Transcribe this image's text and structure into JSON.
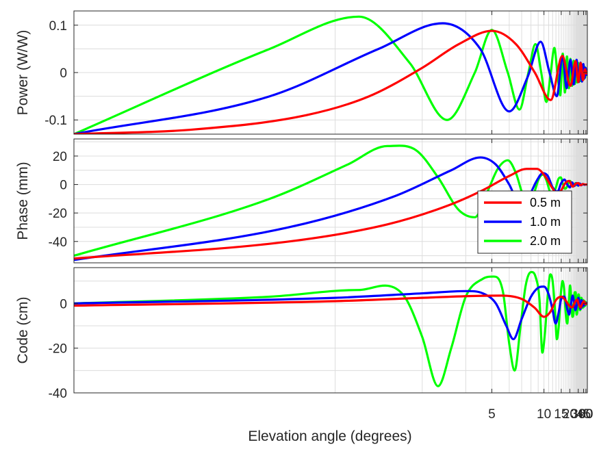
{
  "chart_data": {
    "type": "line",
    "xlabel": "Elevation angle (degrees)",
    "x_scale": "secant (ticks in degrees)",
    "xlim": [
      1,
      90
    ],
    "x_ticks": [
      5,
      10,
      15,
      20,
      30,
      45,
      60,
      90
    ],
    "grid": true,
    "legend": {
      "placement": "inside right of middle panel",
      "entries": [
        "0.5 m",
        "1.0 m",
        "2.0 m"
      ]
    },
    "series_colors": {
      "0.5 m": "#ff0000",
      "1.0 m": "#0000ff",
      "2.0 m": "#00ff00"
    },
    "panels": [
      {
        "ylabel": "Power (W/W)",
        "ylim": [
          -0.13,
          0.13
        ],
        "y_ticks": [
          -0.1,
          0,
          0.1
        ],
        "y_tick_labels": [
          "-0.1",
          "0",
          "0.1"
        ],
        "series": [
          {
            "name": "0.5 m",
            "x": [
              1.0,
              1.3,
              1.8,
              2.3,
              3.0,
              3.8,
              5.0,
              6.5,
              8.5,
              11.5,
              15.5,
              20.5,
              25.8,
              30.0,
              35.3,
              42.5,
              52.0,
              65.0,
              90.0
            ],
            "y": [
              -0.13,
              -0.12,
              -0.09,
              -0.05,
              0.01,
              0.06,
              0.088,
              0.06,
              0.0,
              -0.058,
              0.035,
              -0.028,
              0.024,
              -0.02,
              0.02,
              -0.016,
              0.007,
              -0.002,
              0.002
            ]
          },
          {
            "name": "1.0 m",
            "x": [
              1.0,
              1.6,
              2.4,
              3.4,
              4.5,
              6.0,
              7.6,
              9.4,
              11.2,
              13.3,
              15.6,
              17.8,
              20.5,
              23.6,
              27.3,
              31.0,
              35.0,
              39.0,
              44.0,
              50.0,
              57.0,
              65.0,
              75.0,
              90.0
            ],
            "y": [
              -0.13,
              -0.05,
              0.05,
              0.104,
              0.05,
              -0.082,
              -0.01,
              0.065,
              0.0,
              -0.05,
              0.035,
              -0.033,
              0.027,
              -0.025,
              0.027,
              -0.02,
              0.021,
              -0.019,
              0.018,
              -0.012,
              0.01,
              -0.005,
              0.003,
              0.001
            ]
          },
          {
            "name": "2.0 m",
            "x": [
              1.0,
              1.6,
              2.2,
              2.8,
              3.5,
              4.3,
              5.0,
              5.9,
              6.8,
              7.7,
              8.6,
              9.5,
              10.5,
              11.5,
              12.5,
              13.5,
              14.6,
              15.7,
              16.8,
              18.0,
              19.3,
              20.5,
              22.0,
              23.5,
              25.0,
              26.6,
              28.3,
              30.0,
              32.0,
              34.0,
              36.0,
              38.5,
              41.0,
              43.5,
              46.5,
              50.0,
              54.0,
              58.0,
              63.0,
              70.0,
              80.0,
              90.0
            ],
            "y": [
              -0.13,
              0.05,
              0.118,
              0.02,
              -0.1,
              0.0,
              0.09,
              0.0,
              -0.078,
              0.0,
              0.06,
              0.0,
              -0.062,
              0.0,
              0.052,
              -0.002,
              -0.048,
              0.04,
              -0.042,
              0.034,
              -0.033,
              0.029,
              -0.028,
              0.025,
              -0.024,
              0.022,
              -0.021,
              0.02,
              -0.019,
              0.018,
              -0.018,
              0.017,
              -0.016,
              0.015,
              -0.014,
              0.012,
              -0.01,
              0.008,
              -0.005,
              0.003,
              -0.001,
              0.0
            ]
          }
        ]
      },
      {
        "ylabel": "Phase (mm)",
        "ylim": [
          -55,
          32
        ],
        "y_ticks": [
          -40,
          -20,
          0,
          20
        ],
        "y_tick_labels": [
          "-40",
          "-20",
          "0",
          "20"
        ],
        "series": [
          {
            "name": "0.5 m",
            "x": [
              1.0,
              1.7,
              2.5,
              3.5,
              4.6,
              6.0,
              7.5,
              8.8,
              10.2,
              11.8,
              13.2,
              15.0,
              17.0,
              19.5,
              22.5,
              26.0,
              30.0,
              35.0,
              42.0,
              55.0,
              70.0,
              90.0
            ],
            "y": [
              -52,
              -40,
              -28,
              -15,
              -4,
              6,
              11,
              11,
              6,
              -2,
              -6,
              -4,
              1,
              2.5,
              -1.5,
              0.5,
              1,
              -0.5,
              0.3,
              0,
              0,
              0
            ]
          },
          {
            "name": "1.0 m",
            "x": [
              1.0,
              1.7,
              2.6,
              3.6,
              4.5,
              5.2,
              6.0,
              6.8,
              7.7,
              8.7,
              9.8,
              10.8,
              12.0,
              13.5,
              15.0,
              16.5,
              18.2,
              20.0,
              22.0,
              24.5,
              27.0,
              30.0,
              33.0,
              37.0,
              42.0,
              50.0,
              60.0,
              90.0
            ],
            "y": [
              -53,
              -30,
              -8,
              10,
              19,
              14,
              0,
              -13,
              -9,
              2,
              8,
              6,
              -2,
              -5,
              1,
              3.5,
              0,
              -2,
              1.5,
              -1,
              1,
              -0.8,
              0.7,
              -0.5,
              0.4,
              -0.2,
              0,
              0
            ]
          },
          {
            "name": "2.0 m",
            "x": [
              1.0,
              1.6,
              2.1,
              2.5,
              2.9,
              3.3,
              3.8,
              4.3,
              4.8,
              5.3,
              5.9,
              6.5,
              7.1,
              7.7,
              8.4,
              9.1,
              9.8,
              10.5,
              11.3,
              12.1,
              13.0,
              13.9,
              14.8,
              15.8,
              16.8,
              17.8,
              19.0,
              20.2,
              21.5,
              23.0,
              24.5,
              26.0,
              28.0,
              30.0,
              32.0,
              35.0,
              38.0,
              42.0,
              48.0,
              60.0,
              90.0
            ],
            "y": [
              -50,
              -10,
              14,
              27,
              24,
              5,
              -18,
              -23,
              -5,
              11,
              17,
              8,
              -7,
              -14,
              -6,
              4,
              7,
              3,
              -5,
              -7,
              -2,
              4,
              5,
              0,
              -3,
              -2,
              1,
              2.5,
              0,
              -1.5,
              0,
              1,
              -0.5,
              0.5,
              -0.3,
              0.3,
              -0.2,
              0.1,
              0,
              0,
              0
            ]
          }
        ]
      },
      {
        "ylabel": "Code (cm)",
        "ylim": [
          -40,
          16
        ],
        "y_ticks": [
          -40,
          -20,
          0
        ],
        "y_tick_labels": [
          "-40",
          "-20",
          "0"
        ],
        "series": [
          {
            "name": "0.5 m",
            "x": [
              1.0,
              2.0,
              3.0,
              4.2,
              5.5,
              7.0,
              8.5,
              10.0,
              11.5,
              13.0,
              15.0,
              17.0,
              19.5,
              22.0,
              25.0,
              28.0,
              31.0,
              35.0,
              40.0,
              47.0,
              55.0,
              70.0,
              90.0
            ],
            "y": [
              -1,
              1,
              2.5,
              3.3,
              3.5,
              2,
              -2,
              -6,
              -3.5,
              1.5,
              3,
              1.5,
              -1,
              -1.8,
              0.5,
              1.7,
              -0.5,
              -1.8,
              0,
              1,
              -0.3,
              0,
              0
            ]
          },
          {
            "name": "1.0 m",
            "x": [
              1.0,
              2.0,
              3.0,
              4.0,
              4.6,
              5.2,
              5.8,
              6.3,
              7.0,
              8.0,
              9.0,
              10.0,
              11.0,
              12.0,
              12.9,
              13.8,
              15.0,
              16.5,
              18.0,
              19.5,
              21.0,
              22.5,
              24.0,
              25.5,
              27.0,
              28.5,
              30.5,
              32.5,
              35.0,
              37.5,
              40.0,
              43.0,
              46.0,
              50.0,
              55.0,
              62.0,
              75.0,
              90.0
            ],
            "y": [
              0,
              2.5,
              4.5,
              5.5,
              4.5,
              0,
              -10,
              -16,
              -7,
              3,
              7,
              7.5,
              4,
              -3,
              -9,
              -5,
              2,
              3,
              -2,
              -5,
              0,
              3.5,
              0.5,
              -3,
              -2,
              1,
              2.5,
              -1,
              -2.5,
              1.5,
              -1.5,
              1,
              -1,
              0.5,
              -0.5,
              0.2,
              0,
              0
            ]
          },
          {
            "name": "2.0 m",
            "x": [
              1.0,
              1.6,
              2.2,
              2.7,
              3.0,
              3.3,
              3.6,
              4.0,
              4.6,
              5.1,
              5.6,
              6.0,
              6.4,
              6.9,
              7.4,
              8.0,
              8.6,
              9.2,
              9.7,
              10.2,
              10.8,
              11.4,
              12.0,
              12.7,
              13.3,
              14.0,
              14.8,
              15.6,
              16.4,
              17.3,
              18.2,
              19.2,
              20.2,
              21.2,
              22.3,
              23.5,
              24.7,
              26.0,
              27.3,
              28.7,
              30.2,
              31.8,
              33.5,
              35.3,
              37.2,
              39.2,
              41.5,
              44.0,
              47.0,
              50.5,
              55.0,
              60.0,
              67.0,
              75.0,
              90.0
            ],
            "y": [
              0,
              3,
              6,
              4,
              -15,
              -37,
              -20,
              3,
              11,
              12,
              5,
              -18,
              -30,
              -10,
              8,
              14,
              12,
              2,
              -22,
              -13,
              4,
              13,
              10,
              -3,
              -16,
              -10,
              4,
              10,
              6,
              -5,
              -9,
              0,
              8,
              2,
              -6,
              -4,
              5,
              5,
              -5,
              -3,
              4,
              3,
              -3,
              -2,
              2.5,
              1.5,
              -2,
              1.5,
              -1.5,
              1,
              -1,
              0.5,
              -0.3,
              0,
              0
            ]
          }
        ]
      }
    ]
  }
}
